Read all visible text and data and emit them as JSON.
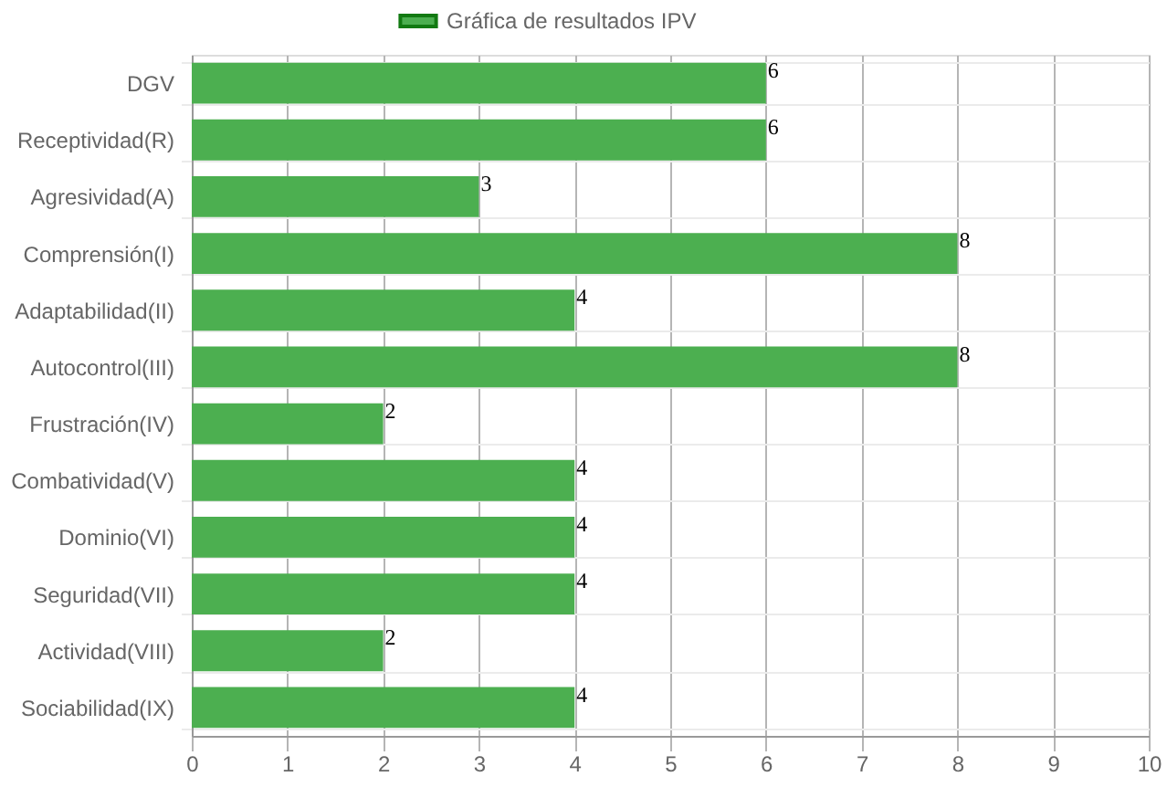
{
  "chart_data": {
    "type": "bar",
    "orientation": "horizontal",
    "categories": [
      "DGV",
      "Receptividad(R)",
      "Agresividad(A)",
      "Comprensión(I)",
      "Adaptabilidad(II)",
      "Autocontrol(III)",
      "Frustración(IV)",
      "Combatividad(V)",
      "Dominio(VI)",
      "Seguridad(VII)",
      "Actividad(VIII)",
      "Sociabilidad(IX)"
    ],
    "series": [
      {
        "name": "Gráfica de resultados IPV",
        "color": "#4caf50",
        "values": [
          6,
          6,
          3,
          8,
          4,
          8,
          2,
          4,
          4,
          4,
          2,
          4
        ]
      }
    ],
    "xlim": [
      0,
      10
    ],
    "xticks": [
      0,
      1,
      2,
      3,
      4,
      5,
      6,
      7,
      8,
      9,
      10
    ],
    "grid": true,
    "legend": "top",
    "data_labels": true
  }
}
